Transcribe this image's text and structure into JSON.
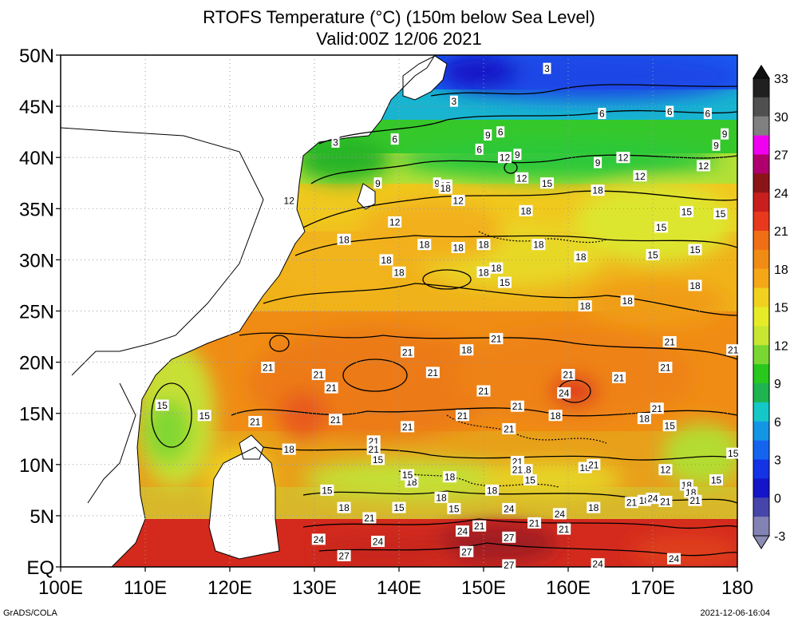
{
  "title_line1": "RTOFS Temperature (°C) (150m below Sea Level)",
  "title_line2": "Valid:00Z 12/06 2021",
  "footer_left": "GrADS/COLA",
  "footer_right": "2021-12-06-16:04",
  "map": {
    "lon_range": [
      100,
      180
    ],
    "lat_range": [
      0,
      50
    ],
    "lon_ticks": [
      "100E",
      "110E",
      "120E",
      "130E",
      "140E",
      "150E",
      "160E",
      "170E",
      "180"
    ],
    "lat_ticks": [
      "EQ",
      "5N",
      "10N",
      "15N",
      "20N",
      "25N",
      "30N",
      "35N",
      "40N",
      "45N",
      "50N"
    ],
    "grid": "dotted",
    "contour_interval": 3
  },
  "colorbar": {
    "labels": [
      "33",
      "30",
      "27",
      "24",
      "21",
      "18",
      "15",
      "12",
      "9",
      "6",
      "3",
      "0",
      "-3"
    ],
    "colors": [
      "#202020",
      "#505050",
      "#808080",
      "#f000f0",
      "#b0006e",
      "#8a1418",
      "#c81e1e",
      "#e8381e",
      "#f06e14",
      "#f08c14",
      "#f4a818",
      "#f0d21e",
      "#e6eb28",
      "#c8e632",
      "#7ad732",
      "#28c81e",
      "#1eb450",
      "#14c8c8",
      "#1496e6",
      "#1464f0",
      "#1432e6",
      "#1414c8",
      "#4646aa",
      "#8282b4"
    ],
    "arrow_top_color": "#101010",
    "arrow_bottom_color": "#8c8cb4"
  },
  "contour_labels": [
    {
      "lon": 157.5,
      "lat": 48.7,
      "t": "3"
    },
    {
      "lon": 146.5,
      "lat": 45.5,
      "t": "3"
    },
    {
      "lon": 132.5,
      "lat": 41.5,
      "t": "3"
    },
    {
      "lon": 139.5,
      "lat": 41.8,
      "t": "6"
    },
    {
      "lon": 164,
      "lat": 44.3,
      "t": "6"
    },
    {
      "lon": 172,
      "lat": 44.5,
      "t": "6"
    },
    {
      "lon": 176.5,
      "lat": 44.3,
      "t": "6"
    },
    {
      "lon": 152,
      "lat": 42.5,
      "t": "6"
    },
    {
      "lon": 149.5,
      "lat": 40.8,
      "t": "6"
    },
    {
      "lon": 150.5,
      "lat": 42.2,
      "t": "9"
    },
    {
      "lon": 178.5,
      "lat": 42.3,
      "t": "9"
    },
    {
      "lon": 177.5,
      "lat": 41.2,
      "t": "9"
    },
    {
      "lon": 154,
      "lat": 40.3,
      "t": "9"
    },
    {
      "lon": 163.5,
      "lat": 39.5,
      "t": "9"
    },
    {
      "lon": 137.5,
      "lat": 37.5,
      "t": "9"
    },
    {
      "lon": 144.5,
      "lat": 37.5,
      "t": "9"
    },
    {
      "lon": 152.5,
      "lat": 40,
      "t": "12"
    },
    {
      "lon": 166.5,
      "lat": 40,
      "t": "12"
    },
    {
      "lon": 176,
      "lat": 39.2,
      "t": "12"
    },
    {
      "lon": 168.5,
      "lat": 38.2,
      "t": "12"
    },
    {
      "lon": 154.5,
      "lat": 38,
      "t": "12"
    },
    {
      "lon": 147,
      "lat": 35.8,
      "t": "12"
    },
    {
      "lon": 127,
      "lat": 35.8,
      "t": "12"
    },
    {
      "lon": 145.5,
      "lat": 37.3,
      "t": "15"
    },
    {
      "lon": 157.5,
      "lat": 37.5,
      "t": "15"
    },
    {
      "lon": 174,
      "lat": 34.7,
      "t": "15"
    },
    {
      "lon": 178,
      "lat": 34.5,
      "t": "15"
    },
    {
      "lon": 171,
      "lat": 33.2,
      "t": "15"
    },
    {
      "lon": 170,
      "lat": 30.5,
      "t": "15"
    },
    {
      "lon": 175,
      "lat": 31,
      "t": "15"
    },
    {
      "lon": 152.5,
      "lat": 27.8,
      "t": "15"
    },
    {
      "lon": 145.5,
      "lat": 37,
      "t": "18"
    },
    {
      "lon": 163.5,
      "lat": 36.8,
      "t": "18"
    },
    {
      "lon": 155,
      "lat": 34.8,
      "t": "18"
    },
    {
      "lon": 133.5,
      "lat": 32,
      "t": "18"
    },
    {
      "lon": 143,
      "lat": 31.5,
      "t": "18"
    },
    {
      "lon": 147,
      "lat": 31.2,
      "t": "18"
    },
    {
      "lon": 150,
      "lat": 31.5,
      "t": "18"
    },
    {
      "lon": 156.5,
      "lat": 31.5,
      "t": "18"
    },
    {
      "lon": 138.5,
      "lat": 30,
      "t": "18"
    },
    {
      "lon": 161.5,
      "lat": 30.3,
      "t": "18"
    },
    {
      "lon": 140,
      "lat": 28.8,
      "t": "18"
    },
    {
      "lon": 150,
      "lat": 28.8,
      "t": "18"
    },
    {
      "lon": 151.5,
      "lat": 29.2,
      "t": "18"
    },
    {
      "lon": 175,
      "lat": 27.5,
      "t": "18"
    },
    {
      "lon": 162,
      "lat": 25.5,
      "t": "18"
    },
    {
      "lon": 167,
      "lat": 26,
      "t": "18"
    },
    {
      "lon": 148,
      "lat": 21.2,
      "t": "18"
    },
    {
      "lon": 158.5,
      "lat": 14.8,
      "t": "18"
    },
    {
      "lon": 127,
      "lat": 11.5,
      "t": "18"
    },
    {
      "lon": 141.5,
      "lat": 8.3,
      "t": "18"
    },
    {
      "lon": 146,
      "lat": 8.8,
      "t": "18"
    },
    {
      "lon": 155,
      "lat": 9.5,
      "t": "18"
    },
    {
      "lon": 162,
      "lat": 9.7,
      "t": "18"
    },
    {
      "lon": 151,
      "lat": 7.5,
      "t": "18"
    },
    {
      "lon": 174,
      "lat": 8,
      "t": "18"
    },
    {
      "lon": 174.5,
      "lat": 7.3,
      "t": "18"
    },
    {
      "lon": 145,
      "lat": 6.8,
      "t": "18"
    },
    {
      "lon": 133.5,
      "lat": 5.8,
      "t": "18"
    },
    {
      "lon": 169,
      "lat": 6.5,
      "t": "18"
    },
    {
      "lon": 163,
      "lat": 5.8,
      "t": "18"
    },
    {
      "lon": 169,
      "lat": 14.5,
      "t": "18"
    },
    {
      "lon": 151.5,
      "lat": 22.3,
      "t": "21"
    },
    {
      "lon": 172,
      "lat": 22,
      "t": "21"
    },
    {
      "lon": 179.5,
      "lat": 21.2,
      "t": "21"
    },
    {
      "lon": 141,
      "lat": 21,
      "t": "21"
    },
    {
      "lon": 124.5,
      "lat": 19.5,
      "t": "21"
    },
    {
      "lon": 144,
      "lat": 19,
      "t": "21"
    },
    {
      "lon": 166,
      "lat": 18.5,
      "t": "21"
    },
    {
      "lon": 171.5,
      "lat": 19.5,
      "t": "21"
    },
    {
      "lon": 130.5,
      "lat": 18.8,
      "t": "21"
    },
    {
      "lon": 160,
      "lat": 18.8,
      "t": "21"
    },
    {
      "lon": 132,
      "lat": 17.5,
      "t": "21"
    },
    {
      "lon": 150,
      "lat": 17.2,
      "t": "21"
    },
    {
      "lon": 154,
      "lat": 15.7,
      "t": "21"
    },
    {
      "lon": 147.5,
      "lat": 14.8,
      "t": "21"
    },
    {
      "lon": 132.5,
      "lat": 14.4,
      "t": "21"
    },
    {
      "lon": 123,
      "lat": 14.2,
      "t": "21"
    },
    {
      "lon": 141,
      "lat": 13.7,
      "t": "21"
    },
    {
      "lon": 153,
      "lat": 13.5,
      "t": "21"
    },
    {
      "lon": 137,
      "lat": 12.3,
      "t": "21"
    },
    {
      "lon": 137,
      "lat": 11.5,
      "t": "21"
    },
    {
      "lon": 170.5,
      "lat": 15.5,
      "t": "21"
    },
    {
      "lon": 154,
      "lat": 10.3,
      "t": "21"
    },
    {
      "lon": 163,
      "lat": 10,
      "t": "21"
    },
    {
      "lon": 154,
      "lat": 9.5,
      "t": "21"
    },
    {
      "lon": 175,
      "lat": 6.5,
      "t": "21"
    },
    {
      "lon": 167.5,
      "lat": 6.3,
      "t": "21"
    },
    {
      "lon": 171.5,
      "lat": 6.4,
      "t": "21"
    },
    {
      "lon": 136.5,
      "lat": 4.8,
      "t": "21"
    },
    {
      "lon": 149.5,
      "lat": 4,
      "t": "21"
    },
    {
      "lon": 156,
      "lat": 4.3,
      "t": "21"
    },
    {
      "lon": 159.5,
      "lat": 3.7,
      "t": "21"
    },
    {
      "lon": 159.5,
      "lat": 17,
      "t": "24"
    },
    {
      "lon": 153,
      "lat": 5.7,
      "t": "24"
    },
    {
      "lon": 159,
      "lat": 5.2,
      "t": "24"
    },
    {
      "lon": 170,
      "lat": 6.7,
      "t": "24"
    },
    {
      "lon": 130.5,
      "lat": 2.7,
      "t": "24"
    },
    {
      "lon": 137.5,
      "lat": 2.5,
      "t": "24"
    },
    {
      "lon": 147.5,
      "lat": 3.5,
      "t": "24"
    },
    {
      "lon": 172.5,
      "lat": 0.8,
      "t": "24"
    },
    {
      "lon": 163.5,
      "lat": 0.3,
      "t": "24"
    },
    {
      "lon": 133.5,
      "lat": 1.1,
      "t": "27"
    },
    {
      "lon": 148,
      "lat": 1.5,
      "t": "27"
    },
    {
      "lon": 153,
      "lat": 2.9,
      "t": "27"
    },
    {
      "lon": 153,
      "lat": 0.2,
      "t": "27"
    },
    {
      "lon": 141,
      "lat": 9,
      "t": "15"
    },
    {
      "lon": 112,
      "lat": 15.8,
      "t": "15"
    },
    {
      "lon": 117,
      "lat": 14.8,
      "t": "15"
    },
    {
      "lon": 137.5,
      "lat": 10.5,
      "t": "15"
    },
    {
      "lon": 131.5,
      "lat": 7.5,
      "t": "15"
    },
    {
      "lon": 140,
      "lat": 5.8,
      "t": "15"
    },
    {
      "lon": 146.5,
      "lat": 5.7,
      "t": "15"
    },
    {
      "lon": 155.5,
      "lat": 8.5,
      "t": "15"
    },
    {
      "lon": 172,
      "lat": 13.8,
      "t": "15"
    },
    {
      "lon": 179.5,
      "lat": 11.1,
      "t": "15"
    },
    {
      "lon": 177.5,
      "lat": 8.5,
      "t": "15"
    },
    {
      "lon": 171.5,
      "lat": 9.5,
      "t": "12"
    },
    {
      "lon": 139.5,
      "lat": 33.7,
      "t": "12"
    }
  ],
  "land_note": "white"
}
